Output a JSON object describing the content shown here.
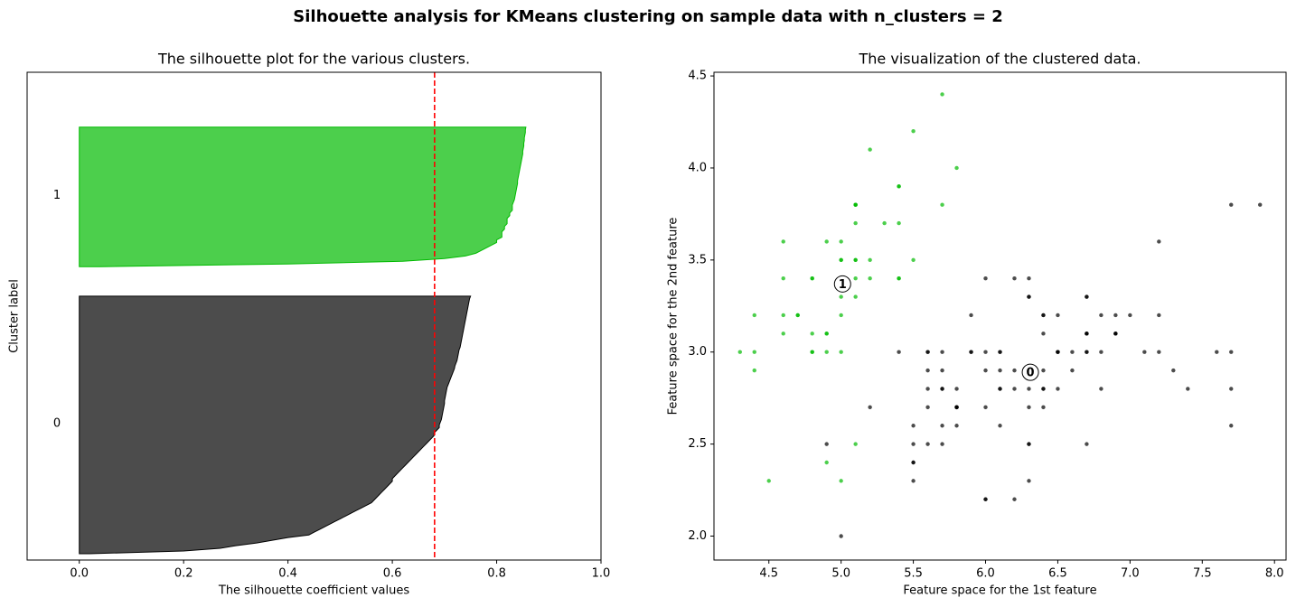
{
  "title": "Silhouette analysis for KMeans clustering on sample data with n_clusters = 2",
  "chart_data": [
    {
      "type": "silhouette",
      "title": "The silhouette plot for the various clusters.",
      "xlabel": "The silhouette coefficient values",
      "ylabel": "Cluster label",
      "xlim": [
        -0.1,
        1.0
      ],
      "xticks": [
        {
          "value": 0,
          "label": "0.0"
        },
        0.2,
        0.4,
        0.6,
        0.8,
        {
          "value": 1,
          "label": "1.0"
        }
      ],
      "average": 0.681,
      "average_color": "#ff0000",
      "series": [
        {
          "name": "0",
          "color": "#000000",
          "values": [
            0.02,
            0.2,
            0.27,
            0.3,
            0.34,
            0.37,
            0.4,
            0.44,
            0.45,
            0.46,
            0.47,
            0.48,
            0.49,
            0.5,
            0.51,
            0.52,
            0.53,
            0.54,
            0.55,
            0.56,
            0.565,
            0.57,
            0.575,
            0.58,
            0.585,
            0.59,
            0.595,
            0.6,
            0.6,
            0.605,
            0.61,
            0.615,
            0.62,
            0.625,
            0.63,
            0.635,
            0.64,
            0.645,
            0.65,
            0.655,
            0.66,
            0.665,
            0.67,
            0.675,
            0.68,
            0.68,
            0.685,
            0.69,
            0.69,
            0.692,
            0.694,
            0.695,
            0.696,
            0.697,
            0.698,
            0.699,
            0.7,
            0.7,
            0.701,
            0.702,
            0.703,
            0.704,
            0.705,
            0.707,
            0.709,
            0.711,
            0.713,
            0.715,
            0.717,
            0.719,
            0.72,
            0.722,
            0.724,
            0.725,
            0.726,
            0.727,
            0.728,
            0.73,
            0.731,
            0.732,
            0.733,
            0.734,
            0.735,
            0.736,
            0.737,
            0.738,
            0.739,
            0.74,
            0.741,
            0.742,
            0.743,
            0.744,
            0.745,
            0.746,
            0.747,
            0.748,
            0.75
          ]
        },
        {
          "name": "1",
          "color": "#00ba00",
          "values": [
            0.04,
            0.4,
            0.62,
            0.7,
            0.74,
            0.76,
            0.77,
            0.78,
            0.79,
            0.8,
            0.8,
            0.81,
            0.81,
            0.81,
            0.815,
            0.815,
            0.82,
            0.82,
            0.82,
            0.825,
            0.825,
            0.83,
            0.83,
            0.83,
            0.832,
            0.834,
            0.835,
            0.836,
            0.837,
            0.838,
            0.839,
            0.84,
            0.84,
            0.841,
            0.842,
            0.843,
            0.844,
            0.845,
            0.846,
            0.847,
            0.848,
            0.849,
            0.85,
            0.85,
            0.851,
            0.852,
            0.852,
            0.853,
            0.853,
            0.854,
            0.855,
            0.855,
            0.856
          ]
        }
      ]
    },
    {
      "type": "scatter",
      "title": "The visualization of the clustered data.",
      "xlabel": "Feature space for the 1st feature",
      "ylabel": "Feature space for the 2nd feature",
      "xlim": [
        4.12,
        8.08
      ],
      "ylim": [
        1.87,
        4.52
      ],
      "xticks": [
        4.5,
        {
          "value": 5,
          "label": "5.0"
        },
        5.5,
        {
          "value": 6,
          "label": "6.0"
        },
        6.5,
        {
          "value": 7,
          "label": "7.0"
        },
        7.5,
        {
          "value": 8,
          "label": "8.0"
        }
      ],
      "yticks": [
        {
          "value": 2,
          "label": "2.0"
        },
        2.5,
        {
          "value": 3,
          "label": "3.0"
        },
        3.5,
        {
          "value": 4,
          "label": "4.0"
        },
        4.5
      ],
      "series": [
        {
          "name": "0",
          "color": "#000000",
          "center_x": 6.31,
          "center_y": 2.89,
          "x": [
            7.0,
            6.4,
            6.9,
            5.5,
            6.5,
            5.7,
            6.3,
            6.6,
            5.2,
            5.0,
            5.9,
            6.0,
            6.1,
            5.6,
            6.7,
            5.6,
            5.8,
            6.2,
            5.6,
            5.9,
            6.1,
            6.3,
            6.1,
            6.4,
            6.6,
            6.8,
            6.7,
            6.0,
            5.7,
            5.5,
            5.5,
            5.8,
            6.0,
            5.4,
            6.0,
            6.7,
            6.3,
            5.6,
            5.5,
            5.5,
            6.1,
            5.8,
            5.6,
            5.7,
            5.7,
            6.2,
            5.7,
            6.3,
            5.8,
            7.1,
            6.3,
            6.5,
            7.6,
            4.9,
            7.3,
            6.7,
            7.2,
            6.5,
            6.4,
            6.8,
            5.7,
            5.8,
            6.4,
            6.5,
            7.7,
            7.7,
            6.0,
            6.9,
            5.6,
            7.7,
            6.3,
            6.7,
            7.2,
            6.2,
            6.1,
            6.4,
            7.2,
            7.4,
            7.9,
            6.4,
            6.3,
            6.1,
            7.7,
            6.3,
            6.4,
            6.0,
            6.9,
            6.7,
            6.9,
            5.8,
            6.8,
            6.7,
            6.7,
            6.3,
            6.5,
            6.2,
            5.9
          ],
          "values": [
            3.2,
            3.2,
            3.1,
            2.3,
            2.8,
            2.8,
            3.3,
            2.9,
            2.7,
            2.0,
            3.0,
            2.2,
            2.9,
            2.9,
            3.1,
            3.0,
            2.7,
            2.2,
            2.5,
            3.2,
            2.8,
            2.5,
            2.8,
            2.9,
            3.0,
            2.8,
            3.0,
            2.9,
            2.6,
            2.4,
            2.4,
            2.7,
            2.7,
            3.0,
            3.4,
            3.1,
            2.3,
            3.0,
            2.5,
            2.6,
            3.0,
            2.6,
            2.7,
            3.0,
            2.9,
            2.9,
            2.8,
            3.3,
            2.7,
            3.0,
            2.9,
            3.0,
            3.0,
            2.5,
            2.9,
            2.5,
            3.6,
            3.2,
            2.7,
            3.0,
            2.5,
            2.8,
            3.2,
            3.0,
            3.8,
            2.6,
            2.2,
            3.2,
            2.8,
            2.8,
            2.7,
            3.3,
            3.2,
            2.8,
            3.0,
            2.8,
            3.0,
            2.8,
            3.8,
            2.8,
            2.8,
            2.6,
            3.0,
            3.4,
            3.1,
            3.0,
            3.1,
            3.1,
            3.1,
            2.7,
            3.2,
            3.3,
            3.0,
            2.5,
            3.0,
            3.4,
            3.0
          ]
        },
        {
          "name": "1",
          "color": "#00ba00",
          "center_x": 5.01,
          "center_y": 3.37,
          "x": [
            5.1,
            4.9,
            4.7,
            4.6,
            5.0,
            5.4,
            4.6,
            5.0,
            4.4,
            4.9,
            5.4,
            4.8,
            4.8,
            4.3,
            5.8,
            5.7,
            5.4,
            5.1,
            5.7,
            5.1,
            5.4,
            5.1,
            4.6,
            5.1,
            4.8,
            5.0,
            5.0,
            5.2,
            5.2,
            4.7,
            4.8,
            5.4,
            5.2,
            5.5,
            4.9,
            5.0,
            5.5,
            4.9,
            4.4,
            5.1,
            5.0,
            4.5,
            4.4,
            5.0,
            5.1,
            4.8,
            5.1,
            4.6,
            5.3,
            5.0,
            4.9,
            5.0,
            5.1
          ],
          "values": [
            3.5,
            3.0,
            3.2,
            3.1,
            3.6,
            3.9,
            3.4,
            3.4,
            2.9,
            3.1,
            3.7,
            3.4,
            3.0,
            3.0,
            4.0,
            4.4,
            3.9,
            3.5,
            3.8,
            3.8,
            3.4,
            3.7,
            3.6,
            3.3,
            3.4,
            3.0,
            3.4,
            3.5,
            3.4,
            3.2,
            3.1,
            3.4,
            4.1,
            4.2,
            3.1,
            3.2,
            3.5,
            3.6,
            3.0,
            3.4,
            3.5,
            2.3,
            3.2,
            3.5,
            3.8,
            3.0,
            3.8,
            3.2,
            3.7,
            3.3,
            2.4,
            2.3,
            2.5
          ]
        }
      ]
    }
  ]
}
